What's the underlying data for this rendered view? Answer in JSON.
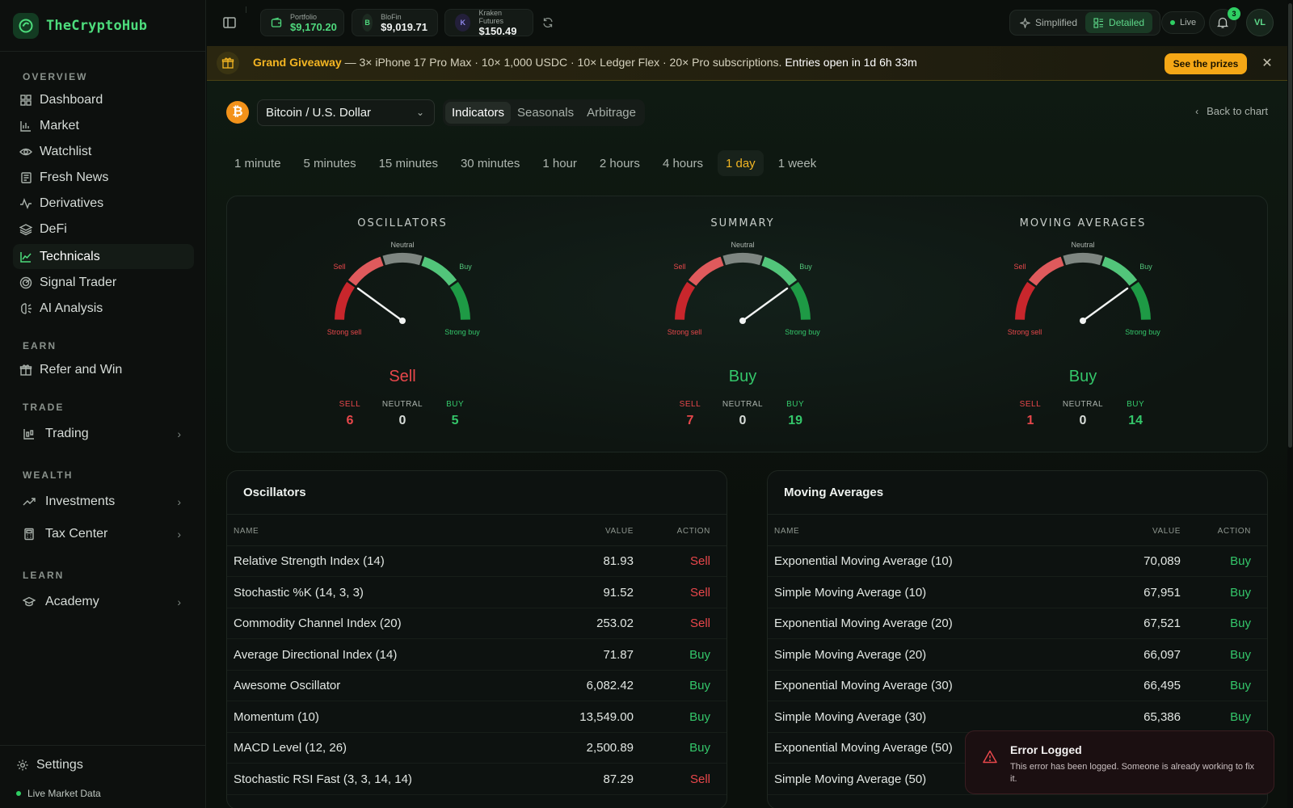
{
  "brand": {
    "name": "TheCryptoHub"
  },
  "sidebar": {
    "sections": {
      "overview": "OVERVIEW",
      "earn": "EARN",
      "trade": "TRADE",
      "wealth": "WEALTH",
      "learn": "LEARN"
    },
    "overview_items": [
      {
        "label": "Dashboard",
        "icon": "dashboard-icon"
      },
      {
        "label": "Market",
        "icon": "market-icon"
      },
      {
        "label": "Watchlist",
        "icon": "eye-icon"
      },
      {
        "label": "Fresh News",
        "icon": "news-icon"
      },
      {
        "label": "Derivatives",
        "icon": "activity-icon"
      },
      {
        "label": "DeFi",
        "icon": "layers-icon"
      },
      {
        "label": "Technicals",
        "icon": "line-chart-icon",
        "active": true
      },
      {
        "label": "Signal Trader",
        "icon": "radar-icon"
      },
      {
        "label": "AI Analysis",
        "icon": "brain-icon"
      }
    ],
    "earn_items": [
      {
        "label": "Refer and Win",
        "icon": "gift-icon"
      }
    ],
    "trade_items": [
      {
        "label": "Trading",
        "icon": "candles-icon"
      }
    ],
    "wealth_items": [
      {
        "label": "Investments",
        "icon": "trend-up-icon"
      },
      {
        "label": "Tax Center",
        "icon": "calculator-icon"
      }
    ],
    "learn_items": [
      {
        "label": "Academy",
        "icon": "graduation-icon"
      }
    ],
    "settings": "Settings",
    "live_market": "Live Market Data"
  },
  "topbar": {
    "accounts": [
      {
        "label": "Portfolio",
        "value": "$9,170.20",
        "icon": "wallet-icon"
      },
      {
        "label": "BloFin",
        "value": "$9,019.71",
        "icon_letter": "B"
      },
      {
        "label": "Kraken Futures",
        "value": "$150.49",
        "icon_letter": "K"
      }
    ],
    "mode_simplified": "Simplified",
    "mode_detailed": "Detailed",
    "live": "Live",
    "notifications": "3",
    "avatar": "VL"
  },
  "banner": {
    "title": "Grand Giveaway",
    "text": " — 3× iPhone 17 Pro Max · 10× 1,000 USDC · 10× Ledger Flex · 20× Pro subscriptions. ",
    "strong": "Entries open in 1d 6h 33m",
    "button": "See the prizes"
  },
  "pair": {
    "coin_symbol": "₿",
    "label": "Bitcoin / U.S. Dollar"
  },
  "view_tabs": [
    "Indicators",
    "Seasonals",
    "Arbitrage"
  ],
  "back_link": "Back to chart",
  "timeframes": [
    "1 minute",
    "5 minutes",
    "15 minutes",
    "30 minutes",
    "1 hour",
    "2 hours",
    "4 hours",
    "1 day",
    "1 week"
  ],
  "active_timeframe": "1 day",
  "gauge_labels": {
    "neutral": "Neutral",
    "sell": "Sell",
    "buy": "Buy",
    "strong_sell": "Strong sell",
    "strong_buy": "Strong buy"
  },
  "count_labels": {
    "sell": "SELL",
    "neutral": "NEUTRAL",
    "buy": "BUY"
  },
  "gauges": [
    {
      "title": "OSCILLATORS",
      "verdict": "Sell",
      "sell": "6",
      "neutral": "0",
      "buy": "5",
      "needle": -0.6
    },
    {
      "title": "SUMMARY",
      "verdict": "Buy",
      "sell": "7",
      "neutral": "0",
      "buy": "19",
      "needle": 0.6
    },
    {
      "title": "MOVING AVERAGES",
      "verdict": "Buy",
      "sell": "1",
      "neutral": "0",
      "buy": "14",
      "needle": 0.6
    }
  ],
  "tables": {
    "headers": {
      "name": "NAME",
      "value": "VALUE",
      "action": "ACTION"
    },
    "oscillators": {
      "title": "Oscillators",
      "rows": [
        {
          "name": "Relative Strength Index (14)",
          "value": "81.93",
          "action": "Sell"
        },
        {
          "name": "Stochastic %K (14, 3, 3)",
          "value": "91.52",
          "action": "Sell"
        },
        {
          "name": "Commodity Channel Index (20)",
          "value": "253.02",
          "action": "Sell"
        },
        {
          "name": "Average Directional Index (14)",
          "value": "71.87",
          "action": "Buy"
        },
        {
          "name": "Awesome Oscillator",
          "value": "6,082.42",
          "action": "Buy"
        },
        {
          "name": "Momentum (10)",
          "value": "13,549.00",
          "action": "Buy"
        },
        {
          "name": "MACD Level (12, 26)",
          "value": "2,500.89",
          "action": "Buy"
        },
        {
          "name": "Stochastic RSI Fast (3, 3, 14, 14)",
          "value": "87.29",
          "action": "Sell"
        }
      ]
    },
    "moving_averages": {
      "title": "Moving Averages",
      "rows": [
        {
          "name": "Exponential Moving Average (10)",
          "value": "70,089",
          "action": "Buy"
        },
        {
          "name": "Simple Moving Average (10)",
          "value": "67,951",
          "action": "Buy"
        },
        {
          "name": "Exponential Moving Average (20)",
          "value": "67,521",
          "action": "Buy"
        },
        {
          "name": "Simple Moving Average (20)",
          "value": "66,097",
          "action": "Buy"
        },
        {
          "name": "Exponential Moving Average (30)",
          "value": "66,495",
          "action": "Buy"
        },
        {
          "name": "Simple Moving Average (30)",
          "value": "65,386",
          "action": "Buy"
        },
        {
          "name": "Exponential Moving Average (50)",
          "value": "",
          "action": ""
        },
        {
          "name": "Simple Moving Average (50)",
          "value": "",
          "action": ""
        }
      ]
    }
  },
  "toast": {
    "title": "Error Logged",
    "message": "This error has been logged. Someone is already working to fix it."
  },
  "colors": {
    "accent": "#34c66a",
    "sell": "#e8474b",
    "gold": "#f5a716"
  }
}
